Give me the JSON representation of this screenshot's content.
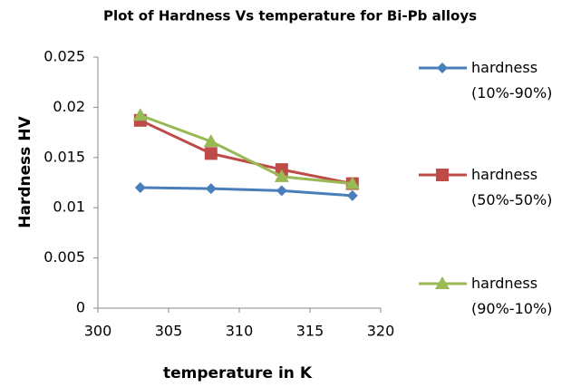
{
  "chart_data": {
    "type": "line",
    "title": "Plot of Hardness Vs temperature for Bi-Pb alloys",
    "x_label": "temperature in K",
    "y_label": "Hardness HV",
    "x": [
      303,
      308,
      313,
      318
    ],
    "xlim": [
      300,
      320
    ],
    "xticks": [
      300,
      305,
      310,
      315,
      320
    ],
    "ylim": [
      0,
      0.025
    ],
    "yticks": [
      0,
      0.005,
      0.01,
      0.015,
      0.02,
      0.025
    ],
    "grid": false,
    "legend": "right",
    "series": [
      {
        "name": "hardness (10%-90%)",
        "color": "#4a7ebb",
        "marker": "diamond",
        "values": [
          0.012,
          0.0119,
          0.0117,
          0.0112
        ]
      },
      {
        "name": "hardness (50%-50%)",
        "color": "#be4b48",
        "marker": "square",
        "values": [
          0.0187,
          0.0154,
          0.0138,
          0.0124
        ]
      },
      {
        "name": "hardness (90%-10%)",
        "color": "#98b954",
        "marker": "triangle",
        "values": [
          0.0192,
          0.0166,
          0.0131,
          0.0124
        ]
      }
    ]
  }
}
